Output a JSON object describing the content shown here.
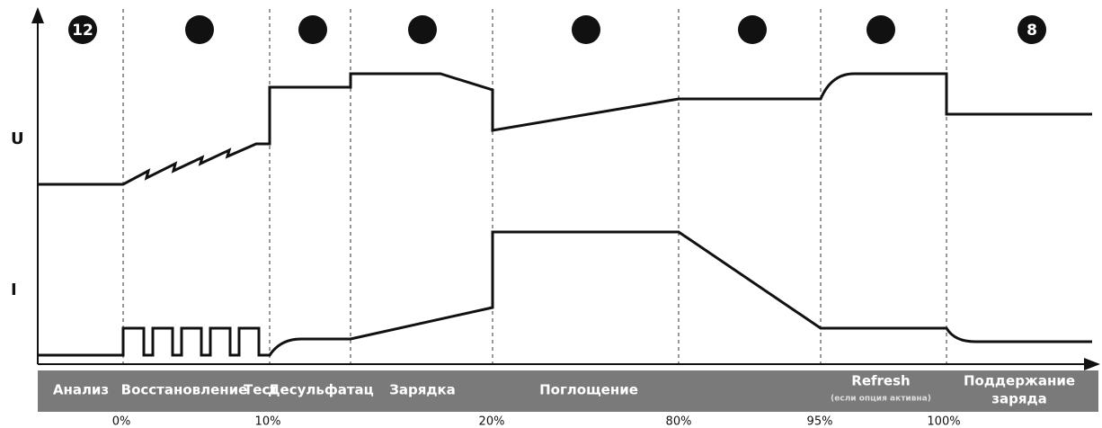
{
  "markers": {
    "first": "12",
    "last": "8"
  },
  "axes": {
    "u": "U",
    "i": "I"
  },
  "phases": [
    "Анализ",
    "Восстановление",
    "Тест",
    "Десульфатац",
    "Зарядка",
    "Поглощение",
    "Refresh",
    "Поддержание",
    "заряда"
  ],
  "refresh_note": "(если опция активна)",
  "percent_labels": [
    "0%",
    "10%",
    "20%",
    "80%",
    "95%",
    "100%"
  ]
}
